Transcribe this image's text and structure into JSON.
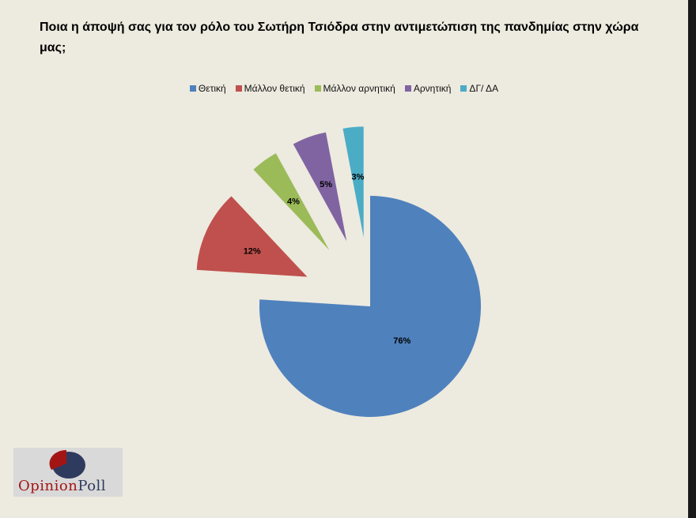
{
  "chart_data": {
    "type": "pie",
    "title": "Ποια η άποψή σας για τον ρόλο του  Σωτήρη Τσιόδρα στην αντιμετώπιση της πανδημίας στην χώρα μας;",
    "legend_position": "top",
    "categories": [
      "Θετική",
      "Μάλλον θετική",
      "Μάλλον αρνητική",
      "Αρνητική",
      "ΔΓ/ ΔΑ"
    ],
    "values": [
      76,
      12,
      4,
      5,
      3
    ],
    "labels": [
      "76%",
      "12%",
      "4%",
      "5%",
      "3%"
    ],
    "colors": [
      "#4f81bd",
      "#c0504d",
      "#9bbb59",
      "#8064a2",
      "#4bacc6"
    ],
    "exploded": [
      false,
      true,
      true,
      true,
      true
    ]
  },
  "logo": {
    "part1": "Opinion",
    "part2": "Poll",
    "color1": "#a31515",
    "color2": "#2e3a5e"
  }
}
